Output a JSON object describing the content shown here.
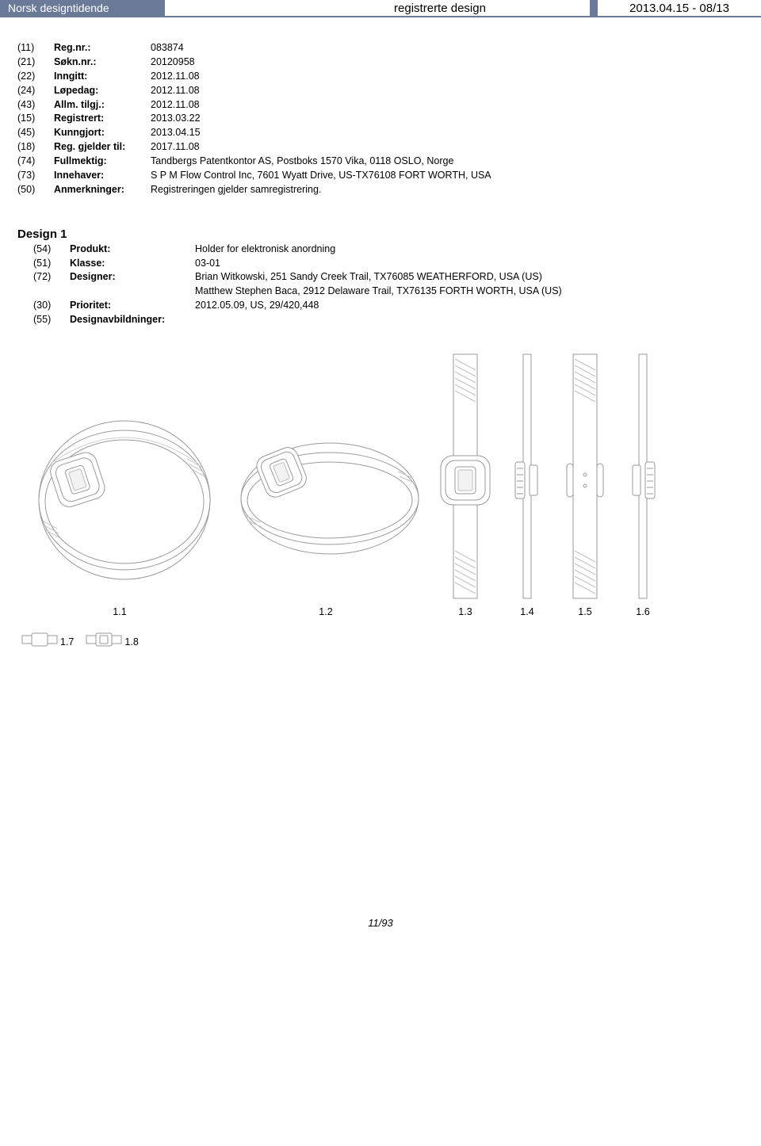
{
  "header": {
    "left": "Norsk designtidende",
    "center": "registrerte design",
    "right": "2013.04.15 - 08/13"
  },
  "meta": [
    {
      "code": "(11)",
      "label": "Reg.nr.:",
      "value": "083874"
    },
    {
      "code": "(21)",
      "label": "Søkn.nr.:",
      "value": "20120958"
    },
    {
      "code": "(22)",
      "label": "Inngitt:",
      "value": "2012.11.08"
    },
    {
      "code": "(24)",
      "label": "Løpedag:",
      "value": "2012.11.08"
    },
    {
      "code": "(43)",
      "label": "Allm. tilgj.:",
      "value": "2012.11.08"
    },
    {
      "code": "(15)",
      "label": "Registrert:",
      "value": "2013.03.22"
    },
    {
      "code": "(45)",
      "label": "Kunngjort:",
      "value": "2013.04.15"
    },
    {
      "code": "(18)",
      "label": "Reg. gjelder til:",
      "value": "2017.11.08"
    },
    {
      "code": "(74)",
      "label": "Fullmektig:",
      "value": "Tandbergs Patentkontor AS, Postboks 1570 Vika, 0118 OSLO, Norge"
    },
    {
      "code": "(73)",
      "label": "Innehaver:",
      "value": "S P M Flow Control Inc, 7601 Wyatt Drive, US-TX76108 FORT WORTH, USA"
    },
    {
      "code": "(50)",
      "label": "Anmerkninger:",
      "value": "Registreringen gjelder samregistrering."
    }
  ],
  "design_heading": "Design 1",
  "design": [
    {
      "code": "(54)",
      "label": "Produkt:",
      "value": "Holder for elektronisk anordning"
    },
    {
      "code": "(51)",
      "label": "Klasse:",
      "value": "03-01"
    },
    {
      "code": "(72)",
      "label": "Designer:",
      "value": "Brian Witkowski, 251 Sandy Creek Trail, TX76085 WEATHERFORD, USA (US)"
    },
    {
      "code": "",
      "label": "",
      "value": "Matthew Stephen Baca, 2912 Delaware Trail, TX76135 FORTH WORTH, USA (US)"
    },
    {
      "code": "(30)",
      "label": "Prioritet:",
      "value": "2012.05.09, US, 29/420,448"
    },
    {
      "code": "(55)",
      "label": "Designavbildninger:",
      "value": ""
    }
  ],
  "fig_labels": {
    "f1": "1.1",
    "f2": "1.2",
    "f3": "1.3",
    "f4": "1.4",
    "f5": "1.5",
    "f6": "1.6",
    "f7": "1.7",
    "f8": "1.8"
  },
  "footer": "11/93",
  "style": {
    "header_bg": "#6b7a99",
    "stroke": "#9a9a9a",
    "hatch": "#c2c2c2",
    "band": "#e9e9e9"
  }
}
